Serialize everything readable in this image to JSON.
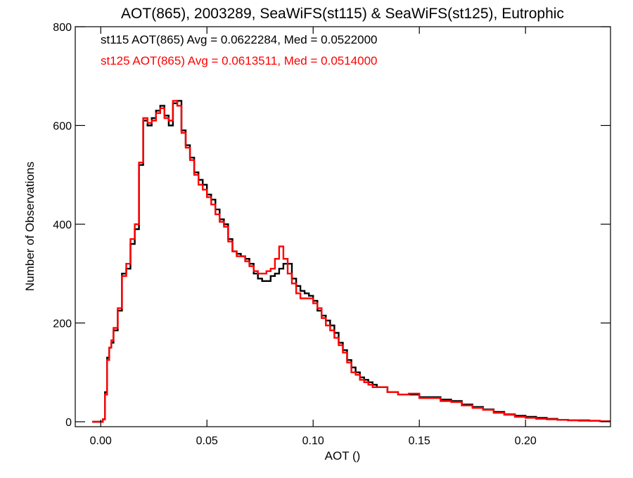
{
  "chart_data": {
    "type": "line",
    "step": true,
    "title": "AOT(865), 2003289, SeaWiFS(st115) & SeaWiFS(st125), Eutrophic",
    "xlabel": "AOT ()",
    "ylabel": "Number of Observations",
    "xlim": [
      -0.012,
      0.24
    ],
    "ylim": [
      -10,
      800
    ],
    "xticks": [
      0.0,
      0.05,
      0.1,
      0.15,
      0.2
    ],
    "xtick_labels": [
      "0.00",
      "0.05",
      "0.10",
      "0.15",
      "0.20"
    ],
    "yticks": [
      0,
      200,
      400,
      600,
      800
    ],
    "ytick_labels": [
      "0",
      "200",
      "400",
      "600",
      "800"
    ],
    "grid": false,
    "legend_position": "top-left",
    "series": [
      {
        "name": "st115",
        "label": "st115 AOT(865) Avg = 0.0622284, Med = 0.0522000",
        "color": "#000000",
        "x": [
          -0.004,
          0.0,
          0.001,
          0.002,
          0.003,
          0.004,
          0.005,
          0.006,
          0.008,
          0.01,
          0.012,
          0.014,
          0.016,
          0.018,
          0.02,
          0.022,
          0.024,
          0.026,
          0.028,
          0.03,
          0.032,
          0.034,
          0.036,
          0.038,
          0.04,
          0.042,
          0.044,
          0.046,
          0.048,
          0.05,
          0.052,
          0.054,
          0.056,
          0.058,
          0.06,
          0.062,
          0.064,
          0.066,
          0.068,
          0.07,
          0.072,
          0.074,
          0.076,
          0.078,
          0.08,
          0.082,
          0.084,
          0.086,
          0.088,
          0.09,
          0.092,
          0.094,
          0.096,
          0.098,
          0.1,
          0.102,
          0.104,
          0.106,
          0.108,
          0.11,
          0.112,
          0.114,
          0.116,
          0.118,
          0.12,
          0.122,
          0.124,
          0.126,
          0.128,
          0.13,
          0.135,
          0.14,
          0.145,
          0.15,
          0.155,
          0.16,
          0.165,
          0.17,
          0.175,
          0.18,
          0.185,
          0.19,
          0.195,
          0.2,
          0.205,
          0.21,
          0.215,
          0.22,
          0.225,
          0.23,
          0.235,
          0.24
        ],
        "values": [
          0,
          0,
          5,
          60,
          130,
          150,
          160,
          185,
          225,
          300,
          310,
          360,
          390,
          520,
          610,
          600,
          615,
          630,
          640,
          620,
          600,
          645,
          650,
          590,
          560,
          535,
          505,
          490,
          480,
          460,
          450,
          430,
          410,
          400,
          370,
          345,
          340,
          335,
          330,
          320,
          300,
          290,
          285,
          285,
          295,
          300,
          310,
          320,
          320,
          290,
          275,
          265,
          260,
          255,
          245,
          225,
          215,
          205,
          195,
          180,
          160,
          145,
          125,
          110,
          100,
          90,
          85,
          80,
          75,
          70,
          60,
          55,
          55,
          50,
          50,
          45,
          42,
          35,
          30,
          25,
          20,
          15,
          12,
          10,
          8,
          6,
          4,
          3,
          3,
          2,
          1,
          1
        ]
      },
      {
        "name": "st125",
        "label": "st125 AOT(865) Avg = 0.0613511, Med = 0.0514000",
        "color": "#ff0000",
        "x": [
          -0.004,
          0.0,
          0.001,
          0.002,
          0.003,
          0.004,
          0.005,
          0.006,
          0.008,
          0.01,
          0.012,
          0.014,
          0.016,
          0.018,
          0.02,
          0.022,
          0.024,
          0.026,
          0.028,
          0.03,
          0.032,
          0.034,
          0.036,
          0.038,
          0.04,
          0.042,
          0.044,
          0.046,
          0.048,
          0.05,
          0.052,
          0.054,
          0.056,
          0.058,
          0.06,
          0.062,
          0.064,
          0.066,
          0.068,
          0.07,
          0.072,
          0.074,
          0.076,
          0.078,
          0.08,
          0.082,
          0.084,
          0.086,
          0.088,
          0.09,
          0.092,
          0.094,
          0.096,
          0.098,
          0.1,
          0.102,
          0.104,
          0.106,
          0.108,
          0.11,
          0.112,
          0.114,
          0.116,
          0.118,
          0.12,
          0.122,
          0.124,
          0.126,
          0.128,
          0.13,
          0.135,
          0.14,
          0.145,
          0.15,
          0.155,
          0.16,
          0.165,
          0.17,
          0.175,
          0.18,
          0.185,
          0.19,
          0.195,
          0.2,
          0.205,
          0.21,
          0.215,
          0.22,
          0.225,
          0.23,
          0.235,
          0.24
        ],
        "values": [
          0,
          0,
          5,
          55,
          125,
          150,
          165,
          190,
          230,
          295,
          320,
          370,
          400,
          525,
          615,
          605,
          610,
          625,
          635,
          615,
          610,
          650,
          640,
          585,
          555,
          530,
          500,
          480,
          470,
          455,
          440,
          420,
          405,
          395,
          365,
          345,
          335,
          335,
          325,
          315,
          305,
          300,
          300,
          305,
          310,
          330,
          355,
          330,
          300,
          280,
          260,
          250,
          250,
          250,
          240,
          230,
          210,
          195,
          185,
          170,
          155,
          140,
          120,
          100,
          95,
          85,
          80,
          75,
          70,
          70,
          60,
          55,
          57,
          48,
          48,
          42,
          40,
          33,
          28,
          24,
          18,
          14,
          10,
          8,
          6,
          5,
          4,
          3,
          2,
          2,
          1,
          1
        ]
      }
    ]
  }
}
